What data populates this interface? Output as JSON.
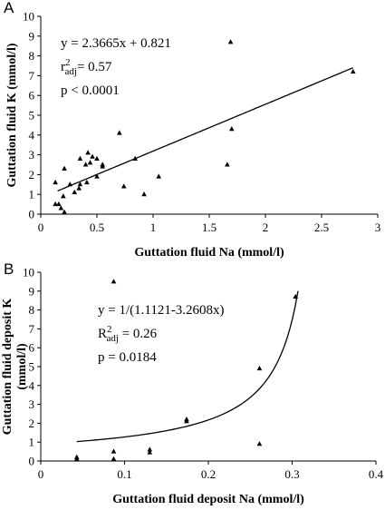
{
  "chart_data": [
    {
      "type": "scatter",
      "panel_label": "A",
      "xlabel": "Guttation fluid Na (mmol/l)",
      "ylabel": "Guttation fluid K (mmol/l)",
      "xlim": [
        0,
        3
      ],
      "ylim": [
        0,
        10
      ],
      "xticks": [
        "0",
        "0.5",
        "1",
        "1.5",
        "2",
        "2.5",
        "3"
      ],
      "yticks": [
        "0",
        "1",
        "2",
        "3",
        "4",
        "5",
        "6",
        "7",
        "8",
        "9",
        "10"
      ],
      "grid": false,
      "annotation": {
        "equation": "y = 2.3665x + 0.821",
        "r2_base": "r",
        "r2_sup": "2",
        "r2_sub": "adj",
        "r2_value": "= 0.57",
        "p": "p < 0.0001"
      },
      "fit": {
        "kind": "linear",
        "slope": 2.3665,
        "intercept": 0.821,
        "x_range": [
          0.15,
          2.78
        ]
      },
      "points": [
        [
          0.13,
          0.5
        ],
        [
          0.13,
          1.6
        ],
        [
          0.16,
          0.5
        ],
        [
          0.18,
          0.3
        ],
        [
          0.2,
          0.9
        ],
        [
          0.21,
          0.1
        ],
        [
          0.21,
          2.3
        ],
        [
          0.26,
          1.5
        ],
        [
          0.3,
          1.1
        ],
        [
          0.34,
          1.3
        ],
        [
          0.35,
          1.5
        ],
        [
          0.35,
          2.8
        ],
        [
          0.4,
          2.5
        ],
        [
          0.41,
          1.6
        ],
        [
          0.42,
          3.1
        ],
        [
          0.44,
          2.6
        ],
        [
          0.46,
          2.9
        ],
        [
          0.5,
          1.9
        ],
        [
          0.5,
          2.8
        ],
        [
          0.55,
          2.5
        ],
        [
          0.55,
          2.4
        ],
        [
          0.7,
          4.1
        ],
        [
          0.74,
          1.4
        ],
        [
          0.84,
          2.8
        ],
        [
          0.92,
          1.0
        ],
        [
          1.05,
          1.9
        ],
        [
          1.66,
          2.5
        ],
        [
          1.69,
          8.7
        ],
        [
          1.7,
          4.3
        ],
        [
          2.78,
          7.2
        ]
      ]
    },
    {
      "type": "scatter",
      "panel_label": "B",
      "xlabel": "Guttation fluid deposit Na (mmol/l)",
      "ylabel_line1": "Guttation fluid deposit K",
      "ylabel_line2": "(mmol/l)",
      "xlim": [
        0,
        0.4
      ],
      "ylim": [
        0,
        10
      ],
      "xticks": [
        "0",
        "0.1",
        "0.2",
        "0.3",
        "0.4"
      ],
      "yticks": [
        "0",
        "1",
        "2",
        "3",
        "4",
        "5",
        "6",
        "7",
        "8",
        "9",
        "10"
      ],
      "grid": false,
      "annotation": {
        "equation": "y = 1/(1.1121-3.2608x)",
        "r2_base": "R",
        "r2_sup": "2",
        "r2_sub": "adj",
        "r2_value": " = 0.26",
        "p": "p = 0.0184"
      },
      "fit": {
        "kind": "reciprocal",
        "a": 1.1121,
        "b": 3.2608,
        "x_range": [
          0.043,
          0.307
        ]
      },
      "points": [
        [
          0.043,
          0.1
        ],
        [
          0.043,
          0.2
        ],
        [
          0.087,
          0.1
        ],
        [
          0.087,
          0.5
        ],
        [
          0.087,
          9.5
        ],
        [
          0.13,
          0.45
        ],
        [
          0.13,
          0.6
        ],
        [
          0.174,
          2.1
        ],
        [
          0.174,
          2.2
        ],
        [
          0.261,
          0.9
        ],
        [
          0.261,
          4.9
        ],
        [
          0.304,
          8.7
        ]
      ]
    }
  ]
}
